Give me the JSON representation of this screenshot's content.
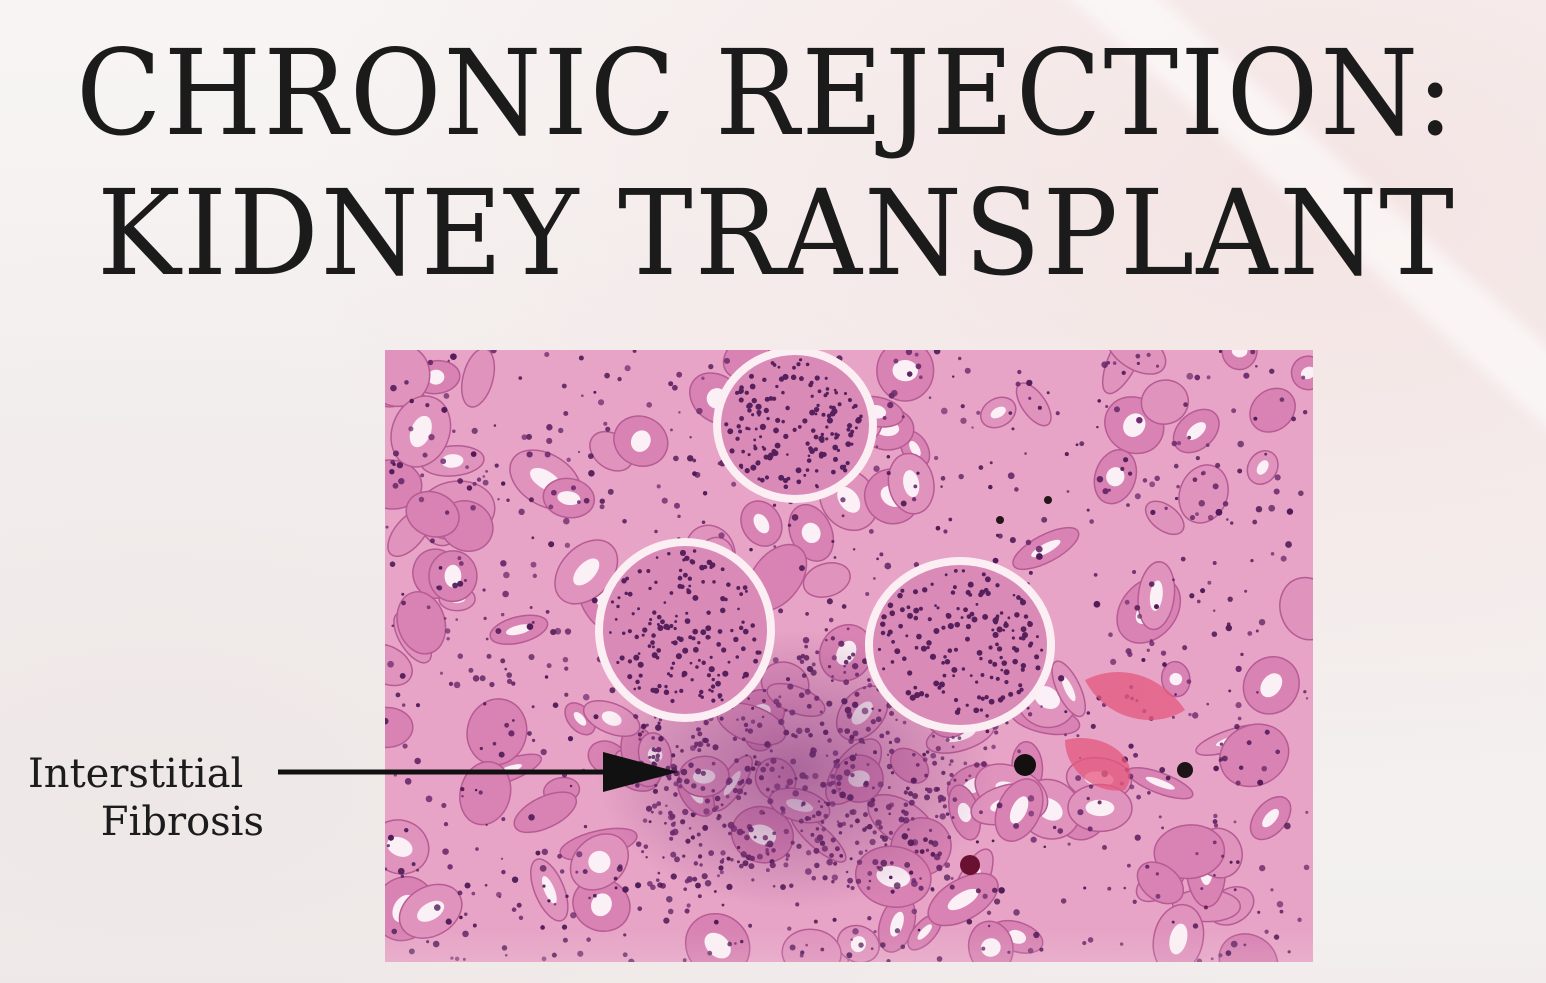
{
  "slide": {
    "title_line_1": "CHRONIC REJECTION:",
    "title_line_2": "KIDNEY TRANSPLANT"
  },
  "annotation": {
    "line_1": "Interstitial",
    "line_2": "Fibrosis"
  },
  "colors": {
    "tissue_base": "#e9a7c8",
    "nuclei": "#5a1f5e",
    "lumen": "#fbf3f6",
    "arrow": "#111111"
  }
}
